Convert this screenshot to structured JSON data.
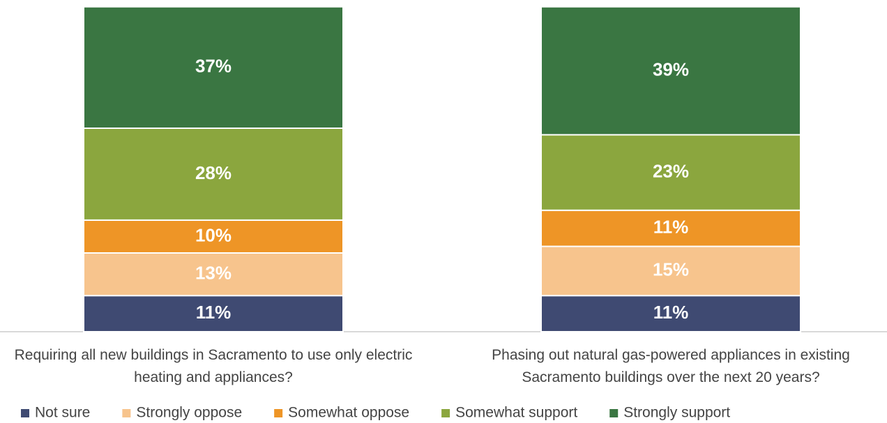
{
  "chart_data": {
    "type": "stacked_bar",
    "categories": [
      "Requiring all new buildings in Sacramento to use only electric heating and appliances?",
      "Phasing out natural gas-powered appliances in existing Sacramento buildings over the next 20 years?"
    ],
    "series": [
      {
        "name": "Not sure",
        "color": "#3f4a72",
        "values": [
          11,
          11
        ],
        "value_labels": [
          "11%",
          "11%"
        ]
      },
      {
        "name": "Strongly oppose",
        "color": "#f7c48d",
        "values": [
          13,
          15
        ],
        "value_labels": [
          "13%",
          "15%"
        ]
      },
      {
        "name": "Somewhat oppose",
        "color": "#ee9526",
        "values": [
          10,
          11
        ],
        "value_labels": [
          "10%",
          "11%"
        ]
      },
      {
        "name": "Somewhat support",
        "color": "#8ba63e",
        "values": [
          28,
          23
        ],
        "value_labels": [
          "28%",
          "23%"
        ]
      },
      {
        "name": "Strongly support",
        "color": "#3a7642",
        "values": [
          37,
          39
        ],
        "value_labels": [
          "37%",
          "39%"
        ]
      }
    ],
    "ylim": [
      0,
      100
    ],
    "legend": "bottom"
  }
}
